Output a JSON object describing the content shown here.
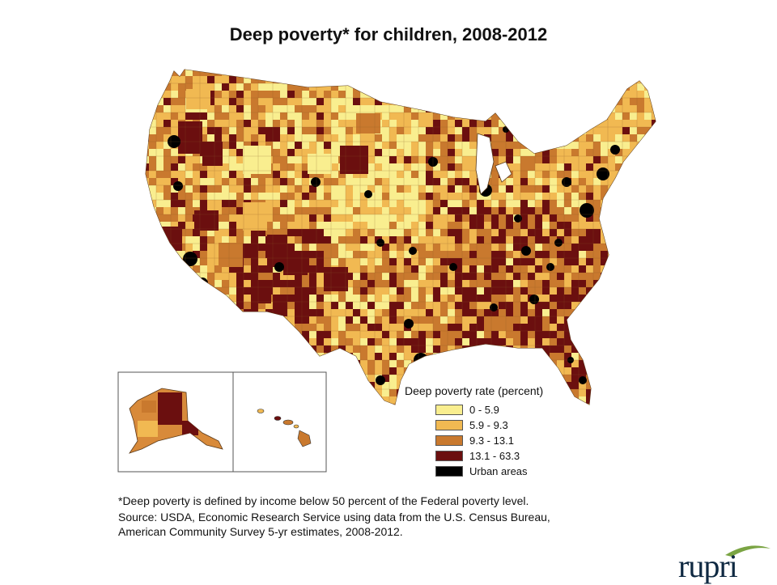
{
  "title": "Deep poverty* for children, 2008-2012",
  "legend": {
    "title": "Deep poverty rate (percent)",
    "items": [
      {
        "label": "0 - 5.9",
        "color": "#f9ee8f"
      },
      {
        "label": "5.9 - 9.3",
        "color": "#f1b952"
      },
      {
        "label": "9.3 - 13.1",
        "color": "#c9792e"
      },
      {
        "label": "13.1 - 63.3",
        "color": "#6b0f0f"
      },
      {
        "label": "Urban areas",
        "color": "#000000"
      }
    ]
  },
  "footnote": {
    "line1": "*Deep poverty is defined by income below 50 percent of the Federal poverty level.",
    "line2": "Source: USDA, Economic Research Service using data from the U.S. Census Bureau,",
    "line3": "American Community Survey 5-yr estimates, 2008-2012."
  },
  "logo": {
    "text": "rupri",
    "accent_color": "#7aa443"
  }
}
